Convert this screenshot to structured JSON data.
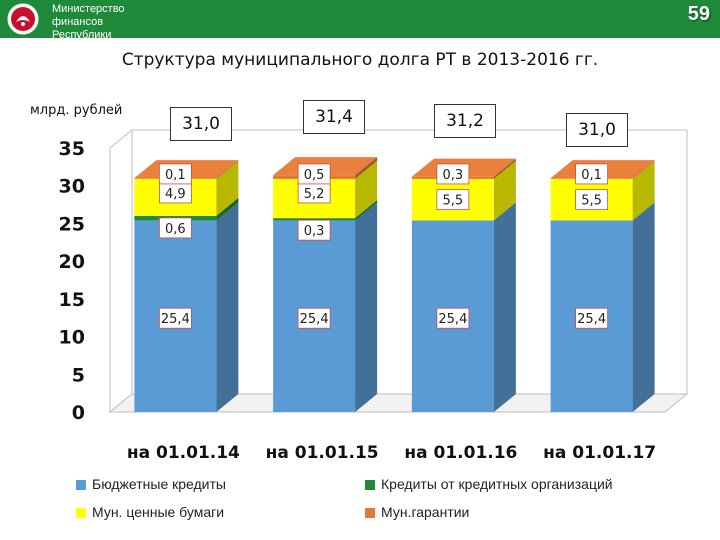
{
  "header": {
    "ministry_lines": [
      "Министерство",
      "финансов",
      "Республики"
    ],
    "slide_number": "59",
    "emblem_icon": "tatarstan-emblem-icon"
  },
  "chart_data": {
    "type": "bar",
    "stacked": true,
    "title": "Структура муниципального долга РТ в 2013-2016 гг.",
    "ylabel": "млрд. рублей",
    "ylim": [
      0,
      35
    ],
    "yticks": [
      0,
      5,
      10,
      15,
      20,
      25,
      30,
      35
    ],
    "categories": [
      "на 01.01.14",
      "на 01.01.15",
      "на 01.01.16",
      "на 01.01.17"
    ],
    "totals": [
      "31,0",
      "31,4",
      "31,2",
      "31,0"
    ],
    "series": [
      {
        "name": "Бюджетные кредиты",
        "color": "#5b9bd5",
        "values": [
          25.4,
          25.4,
          25.4,
          25.4
        ],
        "labels": [
          "25,4",
          "25,4",
          "25,4",
          "25,4"
        ]
      },
      {
        "name": "Кредиты от кредитных организаций",
        "color": "#1f8a3a",
        "values": [
          0.6,
          0.3,
          0,
          0
        ],
        "labels": [
          "0,6",
          "0,3",
          "",
          ""
        ]
      },
      {
        "name": "Мун. ценные бумаги",
        "color": "#ffff00",
        "values": [
          4.9,
          5.2,
          5.5,
          5.5
        ],
        "labels": [
          "4,9",
          "5,2",
          "5,5",
          "5,5"
        ]
      },
      {
        "name": "Мун.гарантии",
        "color": "#e07a3a",
        "values": [
          0.1,
          0.5,
          0.3,
          0.1
        ],
        "labels": [
          "0,1",
          "0,5",
          "0,3",
          "0,1"
        ]
      }
    ],
    "grid": false,
    "legend_position": "bottom"
  }
}
